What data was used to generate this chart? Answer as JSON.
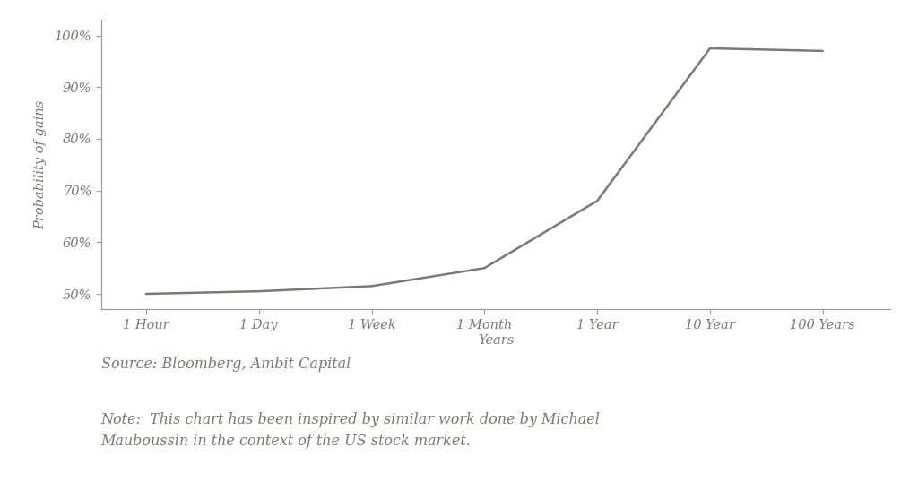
{
  "x_labels": [
    "1 Hour",
    "1 Day",
    "1 Week",
    "1 Month",
    "1 Year",
    "10 Year",
    "100 Years"
  ],
  "x_positions": [
    0,
    1,
    2,
    3,
    4,
    5,
    6
  ],
  "y_values": [
    50.0,
    50.5,
    51.5,
    55.0,
    68.0,
    97.5,
    97.0
  ],
  "y_ticks": [
    50,
    60,
    70,
    80,
    90,
    100
  ],
  "y_tick_labels": [
    "50%",
    "60%",
    "70%",
    "80%",
    "90%",
    "100%"
  ],
  "ylim": [
    47,
    103
  ],
  "xlabel": "Years",
  "ylabel": "Probability of gains",
  "line_color": "#7a7a6e",
  "background_color": "#ffffff",
  "source_text": "Source: Bloomberg, Ambit Capital",
  "note_text": "Note:  This chart has been inspired by similar work done by Michael\nMauboussin in the context of the US stock market.",
  "text_color": "#7a7a6e",
  "spine_color": "#a0a090",
  "tick_color": "#a0a090"
}
